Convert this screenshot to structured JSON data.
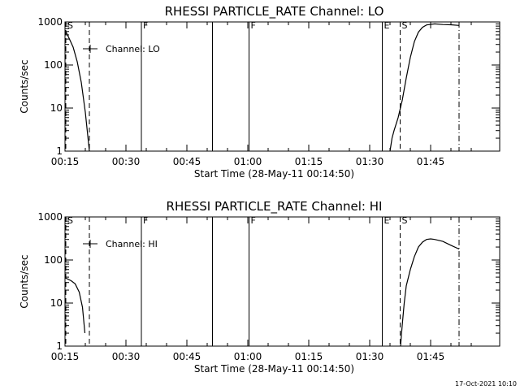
{
  "figure": {
    "timestamp": "17-Oct-2021 10:10"
  },
  "chart_data": [
    {
      "type": "line",
      "title": "RHESSI PARTICLE_RATE Channel: LO",
      "xlabel": "Start Time (28-May-11 00:14:50)",
      "ylabel": "Counts/sec",
      "yscale": "log",
      "ylim": [
        1,
        1000
      ],
      "xlim": [
        15,
        122
      ],
      "x_tick_labels": [
        "00:15",
        "00:30",
        "00:45",
        "01:00",
        "01:15",
        "01:30",
        "01:45"
      ],
      "x_tick_minutes": [
        15,
        30,
        45,
        60,
        75,
        90,
        105
      ],
      "y_tick_labels": [
        "1",
        "10",
        "100",
        "1000"
      ],
      "y_tick_values": [
        1,
        10,
        100,
        1000
      ],
      "legend": {
        "label": "Channel: LO",
        "placement": "top-left"
      },
      "markers": [
        {
          "label": "S",
          "minute": 15.2,
          "style": "dashed"
        },
        {
          "label": "",
          "minute": 21.0,
          "style": "dashed"
        },
        {
          "label": "F",
          "minute": 33.8,
          "style": "solid"
        },
        {
          "label": "",
          "minute": 51.3,
          "style": "solid"
        },
        {
          "label": "F",
          "minute": 60.3,
          "style": "solid"
        },
        {
          "label": "E",
          "minute": 93.1,
          "style": "solid"
        },
        {
          "label": "S",
          "minute": 97.5,
          "style": "dashed"
        },
        {
          "label": "",
          "minute": 112.0,
          "style": "dashdot"
        }
      ],
      "series": [
        {
          "segments": [
            [
              [
                15.2,
                600
              ],
              [
                16.0,
                420
              ],
              [
                17.0,
                260
              ],
              [
                18.0,
                120
              ],
              [
                19.0,
                40
              ],
              [
                20.0,
                8
              ],
              [
                21.0,
                1
              ]
            ],
            [
              [
                95.0,
                1
              ],
              [
                95.5,
                2
              ],
              [
                96.0,
                3
              ],
              [
                97.0,
                6
              ],
              [
                98.0,
                15
              ],
              [
                99.0,
                50
              ],
              [
                100.0,
                150
              ],
              [
                101.0,
                350
              ],
              [
                102.0,
                580
              ],
              [
                103.0,
                750
              ],
              [
                104.0,
                850
              ],
              [
                106.0,
                900
              ],
              [
                108.0,
                870
              ],
              [
                110.0,
                860
              ],
              [
                112.0,
                830
              ]
            ]
          ]
        }
      ]
    },
    {
      "type": "line",
      "title": "RHESSI PARTICLE_RATE Channel: HI",
      "xlabel": "Start Time (28-May-11 00:14:50)",
      "ylabel": "Counts/sec",
      "yscale": "log",
      "ylim": [
        1,
        1000
      ],
      "xlim": [
        15,
        122
      ],
      "x_tick_labels": [
        "00:15",
        "00:30",
        "00:45",
        "01:00",
        "01:15",
        "01:30",
        "01:45"
      ],
      "x_tick_minutes": [
        15,
        30,
        45,
        60,
        75,
        90,
        105
      ],
      "y_tick_labels": [
        "1",
        "10",
        "100",
        "1000"
      ],
      "y_tick_values": [
        1,
        10,
        100,
        1000
      ],
      "legend": {
        "label": "Channel: HI",
        "placement": "top-left"
      },
      "markers": [
        {
          "label": "S",
          "minute": 15.2,
          "style": "dashed"
        },
        {
          "label": "",
          "minute": 21.0,
          "style": "dashed"
        },
        {
          "label": "F",
          "minute": 33.8,
          "style": "solid"
        },
        {
          "label": "",
          "minute": 51.3,
          "style": "solid"
        },
        {
          "label": "F",
          "minute": 60.3,
          "style": "solid"
        },
        {
          "label": "E",
          "minute": 93.1,
          "style": "solid"
        },
        {
          "label": "S",
          "minute": 97.5,
          "style": "dashed"
        },
        {
          "label": "",
          "minute": 112.0,
          "style": "dashdot"
        }
      ],
      "series": [
        {
          "segments": [
            [
              [
                15.2,
                38
              ],
              [
                16.5,
                33
              ],
              [
                17.5,
                28
              ],
              [
                18.5,
                18
              ],
              [
                19.3,
                8
              ],
              [
                19.9,
                2
              ]
            ],
            [
              [
                97.6,
                1
              ],
              [
                98.0,
                3
              ],
              [
                98.5,
                10
              ],
              [
                99.0,
                25
              ],
              [
                100.0,
                60
              ],
              [
                101.0,
                120
              ],
              [
                102.0,
                200
              ],
              [
                103.0,
                260
              ],
              [
                104.0,
                300
              ],
              [
                105.0,
                310
              ],
              [
                106.0,
                300
              ],
              [
                108.0,
                270
              ],
              [
                110.0,
                220
              ],
              [
                112.0,
                180
              ]
            ]
          ]
        }
      ]
    }
  ]
}
